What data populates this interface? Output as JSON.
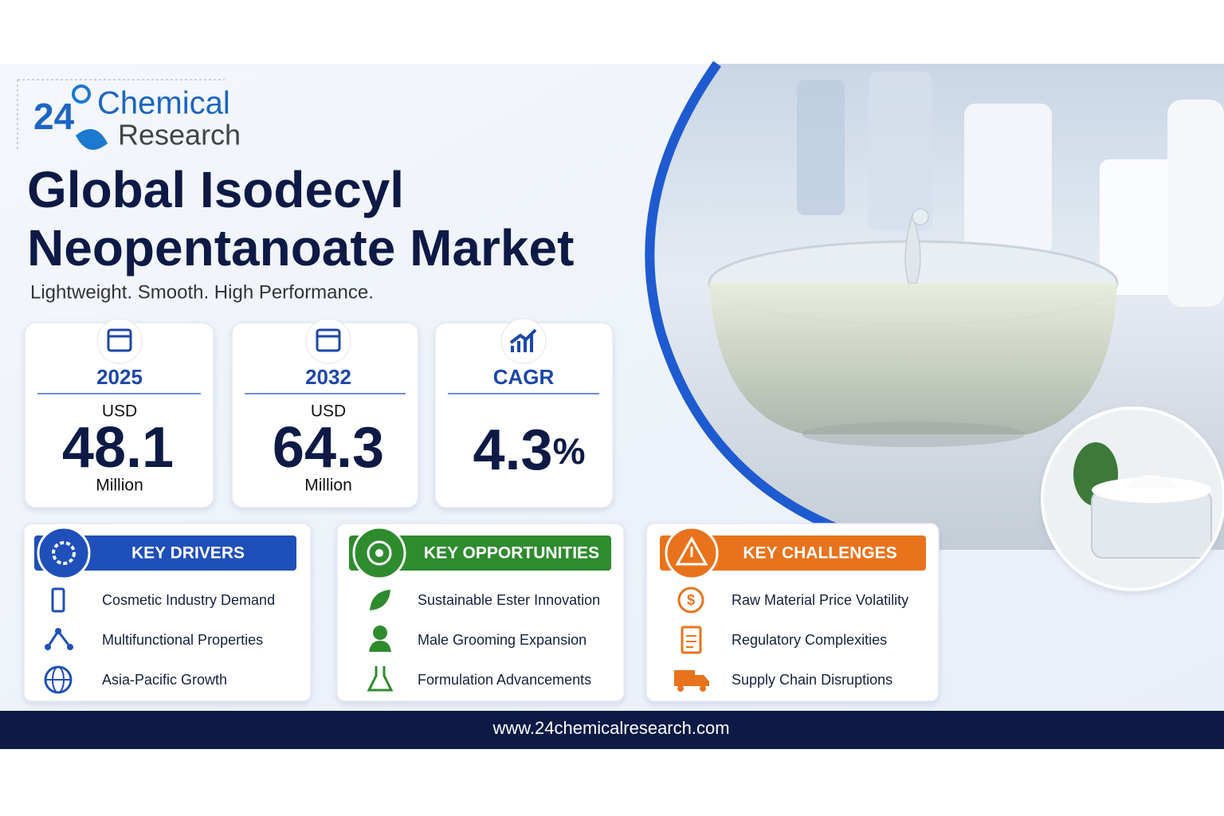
{
  "logo": {
    "number": "24",
    "name_line1": "Chemical",
    "name_line2": "Research"
  },
  "header": {
    "title_line1": "Global Isodecyl",
    "title_line2": "Neopentanoate Market",
    "tagline": "Lightweight. Smooth. High Performance."
  },
  "stats": [
    {
      "label": "2025",
      "prefix": "USD",
      "value": 48.1,
      "unit": "Million"
    },
    {
      "label": "2032",
      "prefix": "USD",
      "value": 64.3,
      "unit": "Million"
    },
    {
      "label": "CAGR",
      "value": 4.3,
      "unit": "%"
    }
  ],
  "panels": [
    {
      "title": "KEY DRIVERS",
      "items": [
        "Cosmetic Industry Demand",
        "Multifunctional Properties",
        "Asia-Pacific Growth"
      ]
    },
    {
      "title": "KEY OPPORTUNITIES",
      "items": [
        "Sustainable Ester Innovation",
        "Male Grooming Expansion",
        "Formulation Advancements"
      ]
    },
    {
      "title": "KEY CHALLENGES",
      "items": [
        "Raw Material Price Volatility",
        "Regulatory Complexities",
        "Supply Chain Disruptions"
      ]
    }
  ],
  "footer": {
    "url": "www.24chemicalresearch.com"
  }
}
